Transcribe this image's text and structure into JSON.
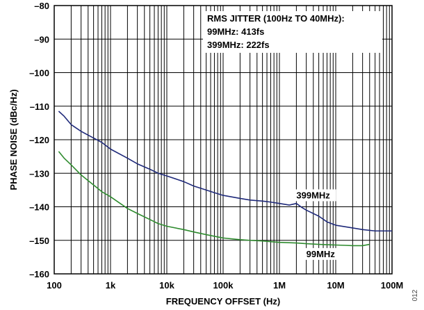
{
  "chart_data": {
    "type": "line",
    "xlabel": "FREQUENCY OFFSET (Hz)",
    "ylabel": "PHASE NOISE (dBc/Hz)",
    "x_scale": "log",
    "xlim": [
      100,
      100000000
    ],
    "ylim": [
      -160,
      -80
    ],
    "x_ticks": [
      {
        "value": 100,
        "label": "100"
      },
      {
        "value": 1000,
        "label": "1k"
      },
      {
        "value": 10000,
        "label": "10k"
      },
      {
        "value": 100000,
        "label": "100k"
      },
      {
        "value": 1000000,
        "label": "1M"
      },
      {
        "value": 10000000,
        "label": "10M"
      },
      {
        "value": 100000000,
        "label": "100M"
      }
    ],
    "y_ticks": [
      {
        "value": -80,
        "label": "–80"
      },
      {
        "value": -90,
        "label": "–90"
      },
      {
        "value": -100,
        "label": "–100"
      },
      {
        "value": -110,
        "label": "–110"
      },
      {
        "value": -120,
        "label": "–120"
      },
      {
        "value": -130,
        "label": "–130"
      },
      {
        "value": -140,
        "label": "–140"
      },
      {
        "value": -150,
        "label": "–150"
      },
      {
        "value": -160,
        "label": "–160"
      }
    ],
    "grid": true,
    "annotation_lines": [
      "RMS JITTER (100Hz TO 40MHz):",
      "99MHz: 413fs",
      "399MHz: 222fs"
    ],
    "series": [
      {
        "name": "399MHz",
        "color": "#1f2a7a",
        "x": [
          120,
          150,
          200,
          300,
          500,
          700,
          1000,
          2000,
          3000,
          5000,
          7000,
          10000,
          20000,
          30000,
          50000,
          70000,
          100000,
          200000,
          300000,
          500000,
          700000,
          1000000,
          1500000,
          2000000,
          2500000,
          3000000,
          5000000,
          7000000,
          10000000,
          20000000,
          30000000,
          50000000,
          100000000
        ],
        "y": [
          -111.5,
          -113,
          -115.5,
          -117.5,
          -119.5,
          -120.8,
          -122.8,
          -125.5,
          -127.2,
          -128.8,
          -130,
          -130.8,
          -132.5,
          -133.8,
          -135,
          -135.8,
          -136.6,
          -137.5,
          -138,
          -138.3,
          -138.6,
          -139,
          -139.5,
          -139,
          -140.2,
          -141,
          -142.8,
          -144.5,
          -145.5,
          -146.3,
          -146.8,
          -147.2,
          -147.2
        ]
      },
      {
        "name": "99MHz",
        "color": "#2e8b2e",
        "x": [
          120,
          150,
          200,
          300,
          500,
          700,
          1000,
          2000,
          3000,
          5000,
          7000,
          10000,
          20000,
          30000,
          50000,
          70000,
          100000,
          200000,
          300000,
          500000,
          700000,
          1000000,
          2000000,
          3000000,
          5000000,
          7000000,
          10000000,
          15000000,
          20000000,
          30000000,
          40000000
        ],
        "y": [
          -123.5,
          -125.5,
          -127.5,
          -130.5,
          -133.5,
          -135.5,
          -137,
          -140.5,
          -142,
          -143.8,
          -145,
          -145.8,
          -146.8,
          -147.5,
          -148.3,
          -148.8,
          -149.3,
          -149.8,
          -150,
          -150.2,
          -150.4,
          -150.6,
          -150.8,
          -151,
          -151.2,
          -151.3,
          -151.4,
          -151.5,
          -151.6,
          -151.6,
          -151.2
        ]
      }
    ],
    "series_labels": [
      {
        "text": "399MHz",
        "x": 2000000,
        "y": -137.5
      },
      {
        "text": "99MHz",
        "x": 3000000,
        "y": -155
      }
    ]
  },
  "figure_id": "012"
}
